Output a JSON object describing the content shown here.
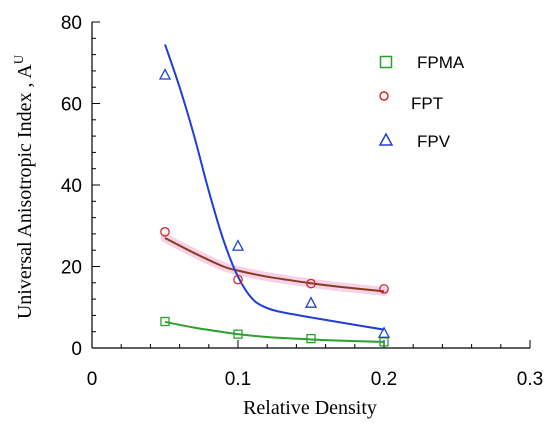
{
  "chart_data": {
    "type": "scatter",
    "xlabel": "Relative Density",
    "ylabel": "Universal Anisotropic Index , A",
    "ylabel_sup": "U",
    "xlim": [
      0,
      0.3
    ],
    "ylim": [
      0,
      80
    ],
    "x_ticks": [
      "0",
      "0.1",
      "0.2",
      "0.3"
    ],
    "y_ticks": [
      "0",
      "20",
      "40",
      "60",
      "80"
    ],
    "grid": false,
    "legend_position": "top-right",
    "series": [
      {
        "name": "FPMA",
        "marker": "square",
        "color": "#2ca02c",
        "x": [
          0.05,
          0.1,
          0.15,
          0.2
        ],
        "y": [
          6.5,
          3.4,
          2.3,
          1.5
        ],
        "fit_x": [
          0.05,
          0.07,
          0.09,
          0.1,
          0.12,
          0.15,
          0.17,
          0.2
        ],
        "fit_y": [
          6.4,
          5.0,
          3.9,
          3.4,
          2.7,
          2.1,
          1.8,
          1.5
        ]
      },
      {
        "name": "FPT",
        "marker": "circle",
        "color": "#d62728",
        "fit_color": "#8b3a1a",
        "x": [
          0.05,
          0.1,
          0.15,
          0.2
        ],
        "y": [
          28.5,
          16.8,
          15.8,
          14.5
        ],
        "fit_x": [
          0.05,
          0.07,
          0.09,
          0.1,
          0.12,
          0.15,
          0.17,
          0.2
        ],
        "fit_y": [
          27.0,
          23.3,
          20.0,
          19.0,
          17.5,
          15.9,
          15.0,
          13.9
        ]
      },
      {
        "name": "FPV",
        "marker": "triangle",
        "color": "#1f3fd6",
        "x": [
          0.05,
          0.1,
          0.15,
          0.2
        ],
        "y": [
          67.0,
          25.0,
          11.0,
          3.6
        ],
        "fit_x": [
          0.05,
          0.06,
          0.07,
          0.08,
          0.09,
          0.1,
          0.11,
          0.12,
          0.13,
          0.15,
          0.17,
          0.2
        ],
        "fit_y": [
          74.5,
          64.0,
          52.0,
          38.5,
          26.5,
          17.5,
          12.0,
          9.8,
          8.8,
          7.5,
          6.3,
          4.5
        ]
      }
    ]
  }
}
